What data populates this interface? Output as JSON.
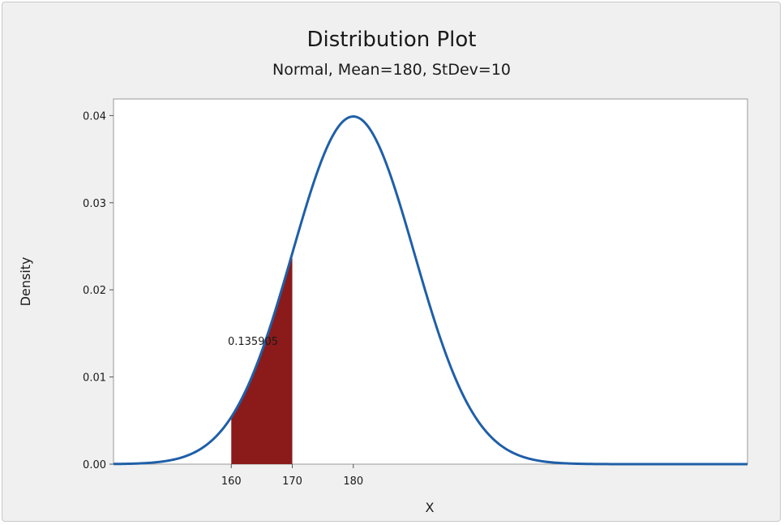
{
  "chart_data": {
    "type": "area",
    "title": "Distribution Plot",
    "subtitle": "Normal, Mean=180, StDev=10",
    "xlabel": "X",
    "ylabel": "Density",
    "distribution": {
      "family": "Normal",
      "mean": 180,
      "stdev": 10
    },
    "xlim": [
      140.7,
      244.6
    ],
    "ylim": [
      0,
      0.0419
    ],
    "x_ticks": [
      160,
      170,
      180
    ],
    "y_ticks": [
      0.0,
      0.01,
      0.02,
      0.03,
      0.04
    ],
    "y_tick_labels": [
      "0.00",
      "0.01",
      "0.02",
      "0.03",
      "0.04"
    ],
    "shaded_region": {
      "from": 160,
      "to": 170,
      "probability_label": "0.135905"
    },
    "grid": false,
    "colors": {
      "curve": "#1f5fa8",
      "shade": "#8b1a1a",
      "plot_bg": "#ffffff",
      "frame_bg": "#f0f0f0"
    }
  }
}
